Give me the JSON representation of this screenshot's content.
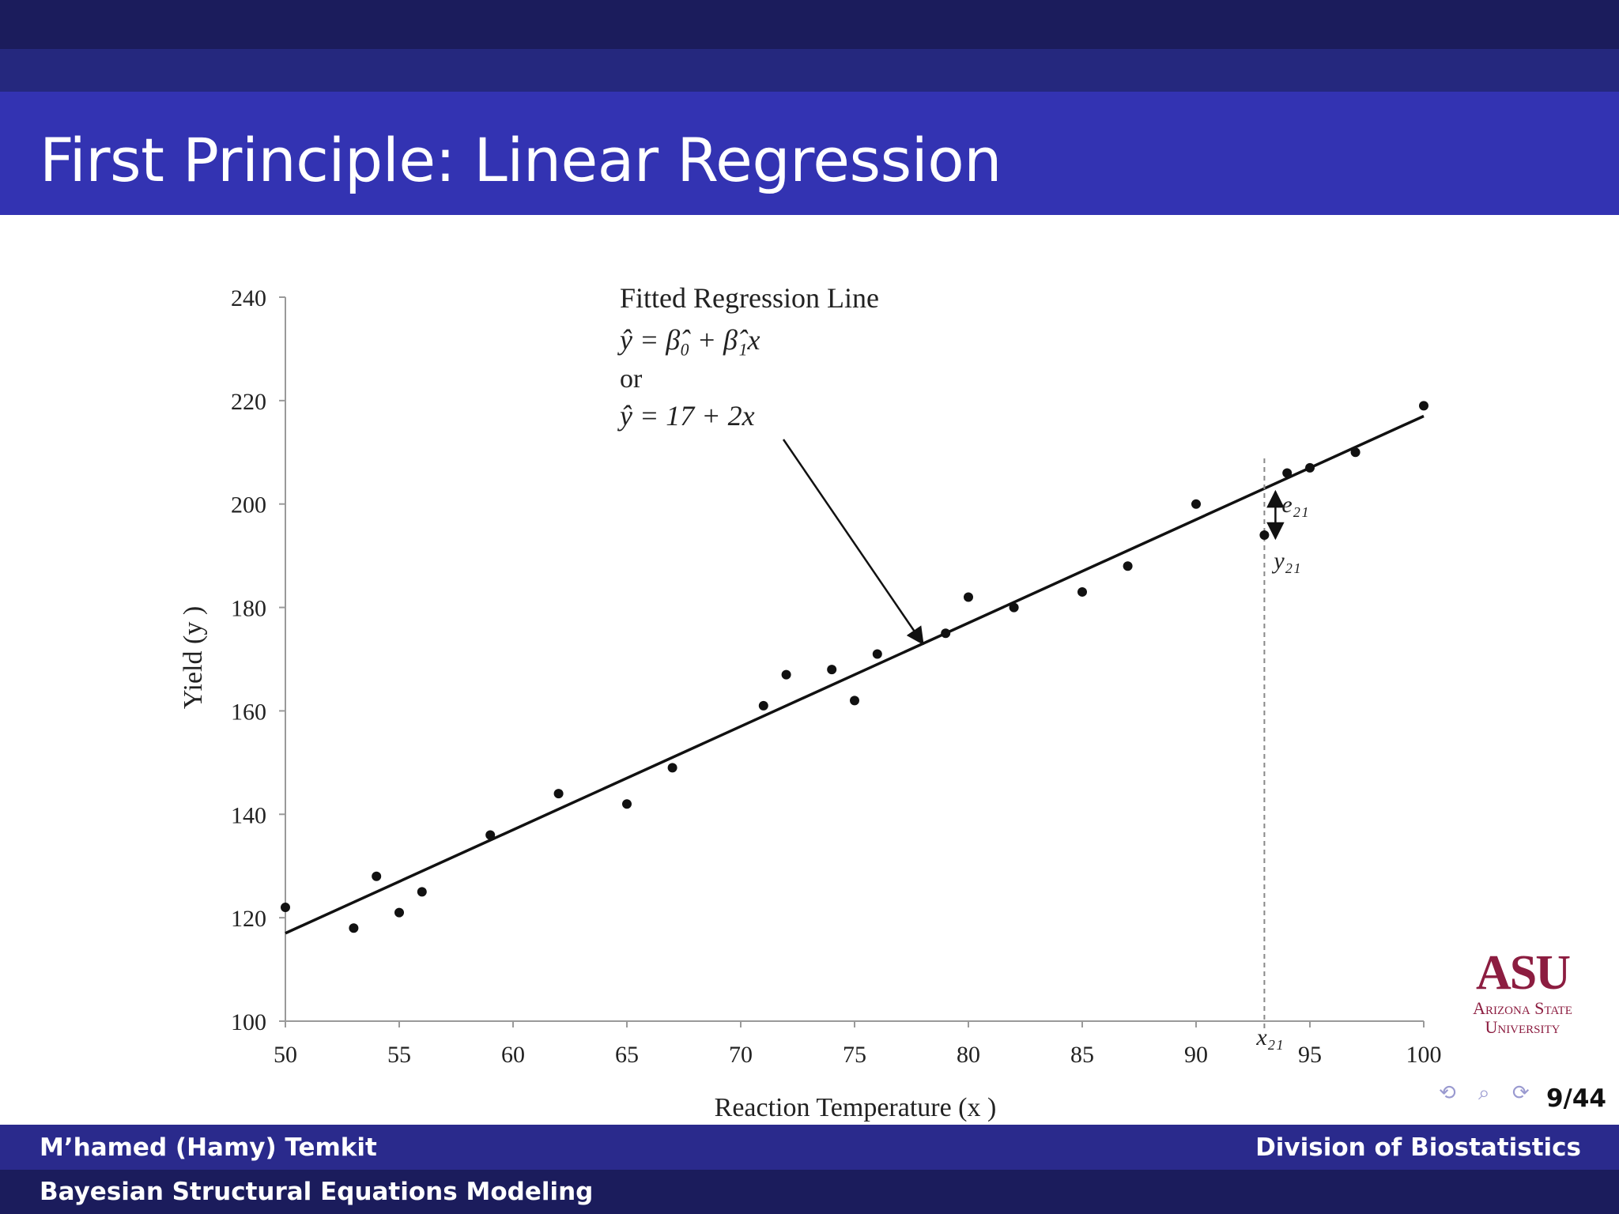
{
  "slide": {
    "title": "First Principle: Linear Regression",
    "page": "9/44"
  },
  "footer": {
    "author": "M’hamed (Hamy) Temkit",
    "affiliation": "Division of Biostatistics",
    "talk_title": "Bayesian Structural Equations Modeling"
  },
  "logo": {
    "mark": "ASU",
    "line1": "Arizona State",
    "line2": "University"
  },
  "nav": {
    "icons": [
      "nav-back-icon",
      "search-icon",
      "refresh-icon"
    ],
    "glyphs": "⟲ ⌕ ⟳"
  },
  "colors": {
    "header_dark": "#1b1c5c",
    "header_mid": "#25287e",
    "title_bar": "#3333b2",
    "footer_top": "#2a2a8c",
    "asu_maroon": "#8c1d40"
  },
  "chart_data": {
    "type": "scatter",
    "xlabel": "Reaction Temperature (x )",
    "ylabel": "Yield (y )",
    "xlim": [
      50,
      100
    ],
    "ylim": [
      100,
      240
    ],
    "xticks": [
      50,
      55,
      60,
      65,
      70,
      75,
      80,
      85,
      90,
      95,
      100
    ],
    "yticks": [
      100,
      120,
      140,
      160,
      180,
      200,
      220,
      240
    ],
    "grid": false,
    "points": [
      {
        "x": 50,
        "y": 122
      },
      {
        "x": 53,
        "y": 118
      },
      {
        "x": 54,
        "y": 128
      },
      {
        "x": 55,
        "y": 121
      },
      {
        "x": 56,
        "y": 125
      },
      {
        "x": 59,
        "y": 136
      },
      {
        "x": 62,
        "y": 144
      },
      {
        "x": 65,
        "y": 142
      },
      {
        "x": 67,
        "y": 149
      },
      {
        "x": 71,
        "y": 161
      },
      {
        "x": 72,
        "y": 167
      },
      {
        "x": 74,
        "y": 168
      },
      {
        "x": 75,
        "y": 162
      },
      {
        "x": 76,
        "y": 171
      },
      {
        "x": 79,
        "y": 175
      },
      {
        "x": 80,
        "y": 182
      },
      {
        "x": 82,
        "y": 180
      },
      {
        "x": 85,
        "y": 183
      },
      {
        "x": 87,
        "y": 188
      },
      {
        "x": 90,
        "y": 200
      },
      {
        "x": 93,
        "y": 194
      },
      {
        "x": 94,
        "y": 206
      },
      {
        "x": 95,
        "y": 207
      },
      {
        "x": 97,
        "y": 210
      },
      {
        "x": 100,
        "y": 219
      }
    ],
    "fitted_line": {
      "intercept": 17,
      "slope": 2
    },
    "annotation": {
      "heading": "Fitted Regression Line",
      "eq1": "ŷ = β̂₀ + β̂₁x",
      "or": "or",
      "eq2": "ŷ = 17 + 2x",
      "arrow_to": {
        "x": 78,
        "y": 173
      }
    },
    "residual": {
      "x": 93,
      "x_label": "x₂₁",
      "e_label": "e₂₁",
      "y_label": "y₂₁",
      "y_obs": 194,
      "y_fit": 203
    }
  }
}
